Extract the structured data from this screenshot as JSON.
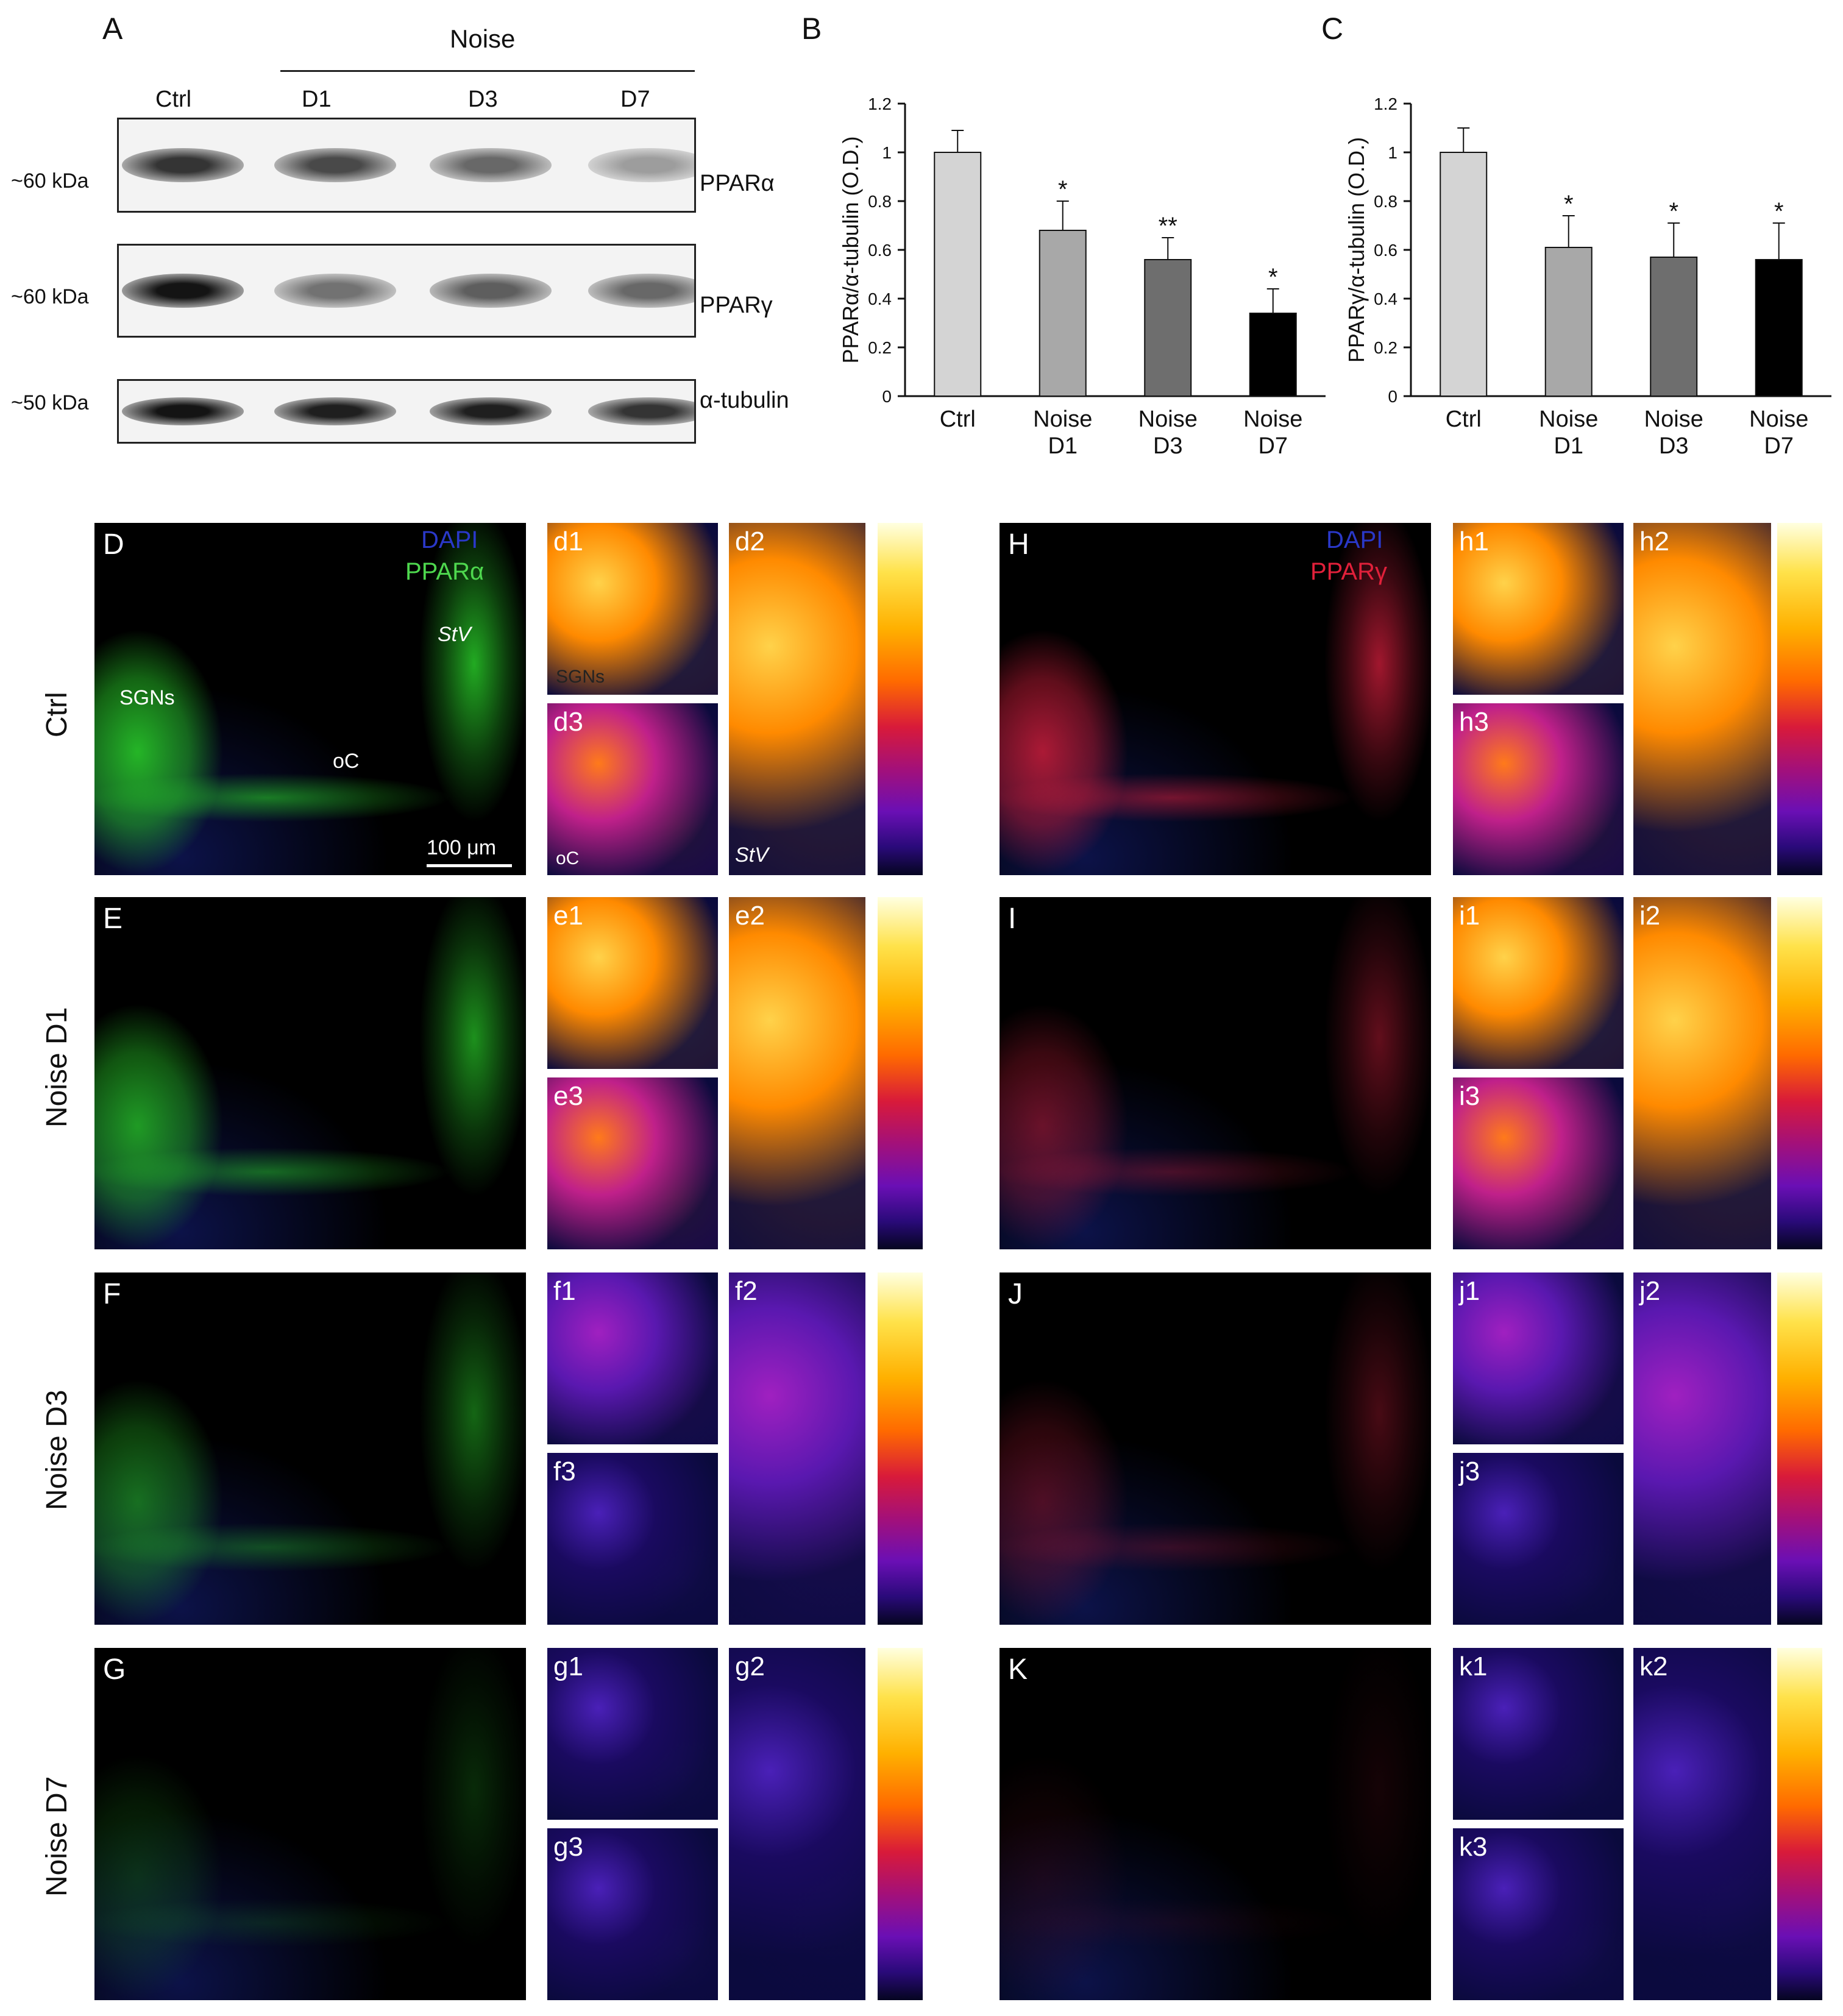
{
  "figure": {
    "panel_letters": {
      "A": "A",
      "B": "B",
      "C": "C",
      "D": "D",
      "E": "E",
      "F": "F",
      "G": "G",
      "H": "H",
      "I": "I",
      "J": "J",
      "K": "K"
    },
    "western": {
      "noise_header": "Noise",
      "lanes": [
        "Ctrl",
        "D1",
        "D3",
        "D7"
      ],
      "rows": [
        {
          "kda": "~60 kDa",
          "protein": "PPARα",
          "intensity": [
            0.85,
            0.75,
            0.6,
            0.35
          ]
        },
        {
          "kda": "~60 kDa",
          "protein": "PPARγ",
          "intensity": [
            1.0,
            0.55,
            0.65,
            0.6
          ]
        },
        {
          "kda": "~50 kDa",
          "protein": "α-tubulin",
          "intensity": [
            1.0,
            0.95,
            0.95,
            0.85
          ]
        }
      ]
    },
    "row_labels": [
      "Ctrl",
      "Noise D1",
      "Noise D3",
      "Noise D7"
    ],
    "legend_left": {
      "dapi": "DAPI",
      "marker": "PPARα"
    },
    "legend_right": {
      "dapi": "DAPI",
      "marker": "PPARγ"
    },
    "annotations": {
      "sgns": "SGNs",
      "stv": "StV",
      "oc": "oC",
      "scale": "100 μm",
      "d1_sgns": "SGNs",
      "d3_oc": "oC",
      "d2_stv": "StV"
    },
    "sublabels_left": [
      [
        "d1",
        "d3",
        "d2"
      ],
      [
        "e1",
        "e3",
        "e2"
      ],
      [
        "f1",
        "f3",
        "f2"
      ],
      [
        "g1",
        "g3",
        "g2"
      ]
    ],
    "sublabels_right": [
      [
        "h1",
        "h3",
        "h2"
      ],
      [
        "i1",
        "i3",
        "i2"
      ],
      [
        "j1",
        "j3",
        "j2"
      ],
      [
        "k1",
        "k3",
        "k2"
      ]
    ],
    "channel_levels": {
      "left_green": [
        1.0,
        0.85,
        0.6,
        0.25
      ],
      "right_red": [
        0.9,
        0.55,
        0.4,
        0.12
      ],
      "heat_left": [
        0.95,
        0.8,
        0.35,
        0.15
      ],
      "heat_right": [
        0.95,
        0.8,
        0.35,
        0.2
      ]
    }
  },
  "chart_data": [
    {
      "type": "bar",
      "panel": "B",
      "categories": [
        "Ctrl",
        "Noise D1",
        "Noise D3",
        "Noise D7"
      ],
      "values": [
        1.0,
        0.68,
        0.56,
        0.34
      ],
      "errors": [
        0.09,
        0.12,
        0.09,
        0.1
      ],
      "significance": [
        "",
        "*",
        "**",
        "*"
      ],
      "colors": [
        "#d4d4d4",
        "#a8a8a8",
        "#6e6e6e",
        "#000000"
      ],
      "ylabel": "PPARα/α-tubulin (O.D.)",
      "ylim": [
        0,
        1.2
      ],
      "yticks": [
        "0",
        "0.2",
        "0.4",
        "0.6",
        "0.8",
        "1",
        "1.2"
      ]
    },
    {
      "type": "bar",
      "panel": "C",
      "categories": [
        "Ctrl",
        "Noise D1",
        "Noise D3",
        "Noise D7"
      ],
      "values": [
        1.0,
        0.61,
        0.57,
        0.56
      ],
      "errors": [
        0.1,
        0.13,
        0.14,
        0.15
      ],
      "significance": [
        "",
        "*",
        "*",
        "*"
      ],
      "colors": [
        "#d4d4d4",
        "#a8a8a8",
        "#6e6e6e",
        "#000000"
      ],
      "ylabel": "PPARγ/α-tubulin (O.D.)",
      "ylim": [
        0,
        1.2
      ],
      "yticks": [
        "0",
        "0.2",
        "0.4",
        "0.6",
        "0.8",
        "1",
        "1.2"
      ]
    }
  ]
}
